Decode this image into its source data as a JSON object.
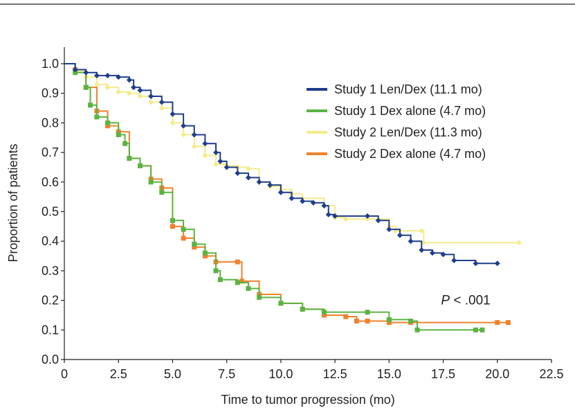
{
  "chart_data": {
    "type": "line",
    "title": "",
    "xlabel": "Time to tumor progression (mo)",
    "ylabel": "Proportion of patients",
    "xlim": [
      0,
      22.5
    ],
    "ylim": [
      0,
      1.0
    ],
    "x_ticks": [
      "0",
      "2.5",
      "5.0",
      "7.5",
      "10.0",
      "12.5",
      "15.0",
      "17.5",
      "20.0",
      "22.5"
    ],
    "y_ticks": [
      "0.0",
      "0.1",
      "0.2",
      "0.3",
      "0.4",
      "0.5",
      "0.6",
      "0.7",
      "0.8",
      "0.9",
      "1.0"
    ],
    "grid": false,
    "legend_position": "top-right",
    "annotation": {
      "italic": "P",
      "text": " < .001",
      "x": 17.4,
      "y": 0.2
    },
    "series": [
      {
        "name": "Study 1 Len/Dex (11.1 mo)",
        "color": "#1f3d8c",
        "marker": "diamond",
        "points": [
          [
            0,
            1.0
          ],
          [
            0.5,
            0.98
          ],
          [
            1.0,
            0.97
          ],
          [
            1.5,
            0.96
          ],
          [
            2.0,
            0.96
          ],
          [
            2.5,
            0.955
          ],
          [
            3.0,
            0.945
          ],
          [
            3.2,
            0.92
          ],
          [
            3.5,
            0.91
          ],
          [
            4.0,
            0.89
          ],
          [
            4.5,
            0.87
          ],
          [
            5.0,
            0.83
          ],
          [
            5.5,
            0.79
          ],
          [
            6.0,
            0.76
          ],
          [
            6.5,
            0.73
          ],
          [
            7.0,
            0.7
          ],
          [
            7.2,
            0.67
          ],
          [
            7.5,
            0.65
          ],
          [
            8.0,
            0.63
          ],
          [
            8.5,
            0.615
          ],
          [
            9.0,
            0.6
          ],
          [
            9.5,
            0.59
          ],
          [
            10.0,
            0.565
          ],
          [
            10.5,
            0.545
          ],
          [
            11.0,
            0.535
          ],
          [
            11.5,
            0.53
          ],
          [
            12.0,
            0.52
          ],
          [
            12.2,
            0.49
          ],
          [
            12.5,
            0.485
          ],
          [
            14.0,
            0.485
          ],
          [
            14.5,
            0.47
          ],
          [
            15.0,
            0.44
          ],
          [
            15.5,
            0.42
          ],
          [
            16.0,
            0.4
          ],
          [
            16.5,
            0.37
          ],
          [
            17.0,
            0.36
          ],
          [
            17.5,
            0.355
          ],
          [
            18.0,
            0.335
          ],
          [
            19.0,
            0.325
          ],
          [
            20.0,
            0.325
          ]
        ]
      },
      {
        "name": "Study 1 Dex alone (4.7 mo)",
        "color": "#5bb342",
        "marker": "square",
        "points": [
          [
            0,
            1.0
          ],
          [
            0.5,
            0.97
          ],
          [
            1.0,
            0.92
          ],
          [
            1.2,
            0.86
          ],
          [
            1.5,
            0.82
          ],
          [
            2.0,
            0.8
          ],
          [
            2.5,
            0.76
          ],
          [
            2.8,
            0.73
          ],
          [
            3.0,
            0.68
          ],
          [
            3.5,
            0.655
          ],
          [
            4.0,
            0.6
          ],
          [
            4.5,
            0.565
          ],
          [
            5.0,
            0.47
          ],
          [
            5.5,
            0.44
          ],
          [
            6.0,
            0.39
          ],
          [
            6.5,
            0.36
          ],
          [
            7.0,
            0.3
          ],
          [
            7.2,
            0.27
          ],
          [
            8.0,
            0.26
          ],
          [
            8.5,
            0.24
          ],
          [
            9.0,
            0.21
          ],
          [
            10.0,
            0.19
          ],
          [
            11.0,
            0.17
          ],
          [
            12.0,
            0.16
          ],
          [
            14.0,
            0.16
          ],
          [
            15.0,
            0.135
          ],
          [
            16.0,
            0.13
          ],
          [
            16.3,
            0.1
          ],
          [
            19.0,
            0.1
          ],
          [
            19.3,
            0.1
          ]
        ]
      },
      {
        "name": "Study 2 Len/Dex (11.3 mo)",
        "color": "#f4ec8b",
        "marker": "diamond",
        "points": [
          [
            0,
            1.0
          ],
          [
            0.5,
            0.975
          ],
          [
            1.0,
            0.955
          ],
          [
            1.5,
            0.93
          ],
          [
            2.0,
            0.92
          ],
          [
            2.5,
            0.905
          ],
          [
            3.0,
            0.9
          ],
          [
            3.5,
            0.89
          ],
          [
            4.0,
            0.87
          ],
          [
            4.5,
            0.85
          ],
          [
            5.0,
            0.8
          ],
          [
            5.5,
            0.76
          ],
          [
            6.0,
            0.72
          ],
          [
            6.5,
            0.69
          ],
          [
            7.0,
            0.66
          ],
          [
            7.5,
            0.655
          ],
          [
            8.0,
            0.65
          ],
          [
            8.5,
            0.645
          ],
          [
            9.0,
            0.6
          ],
          [
            9.5,
            0.585
          ],
          [
            10.0,
            0.575
          ],
          [
            10.5,
            0.56
          ],
          [
            11.0,
            0.545
          ],
          [
            12.0,
            0.52
          ],
          [
            12.5,
            0.48
          ],
          [
            13.0,
            0.475
          ],
          [
            14.0,
            0.475
          ],
          [
            15.0,
            0.45
          ],
          [
            15.3,
            0.435
          ],
          [
            16.5,
            0.435
          ],
          [
            16.6,
            0.395
          ],
          [
            21.0,
            0.395
          ]
        ]
      },
      {
        "name": "Study 2 Dex alone (4.7 mo)",
        "color": "#f0812d",
        "marker": "square",
        "points": [
          [
            0,
            1.0
          ],
          [
            0.5,
            0.98
          ],
          [
            1.0,
            0.92
          ],
          [
            1.5,
            0.84
          ],
          [
            2.0,
            0.79
          ],
          [
            2.5,
            0.77
          ],
          [
            3.0,
            0.68
          ],
          [
            3.5,
            0.655
          ],
          [
            4.0,
            0.61
          ],
          [
            4.5,
            0.58
          ],
          [
            5.0,
            0.45
          ],
          [
            5.5,
            0.41
          ],
          [
            6.0,
            0.38
          ],
          [
            6.5,
            0.35
          ],
          [
            7.0,
            0.33
          ],
          [
            8.0,
            0.33
          ],
          [
            8.2,
            0.265
          ],
          [
            9.0,
            0.22
          ],
          [
            10.0,
            0.19
          ],
          [
            11.0,
            0.17
          ],
          [
            12.0,
            0.15
          ],
          [
            13.0,
            0.145
          ],
          [
            13.5,
            0.13
          ],
          [
            14.0,
            0.13
          ],
          [
            15.0,
            0.125
          ],
          [
            16.0,
            0.125
          ],
          [
            20.0,
            0.125
          ],
          [
            20.5,
            0.125
          ]
        ]
      }
    ]
  }
}
